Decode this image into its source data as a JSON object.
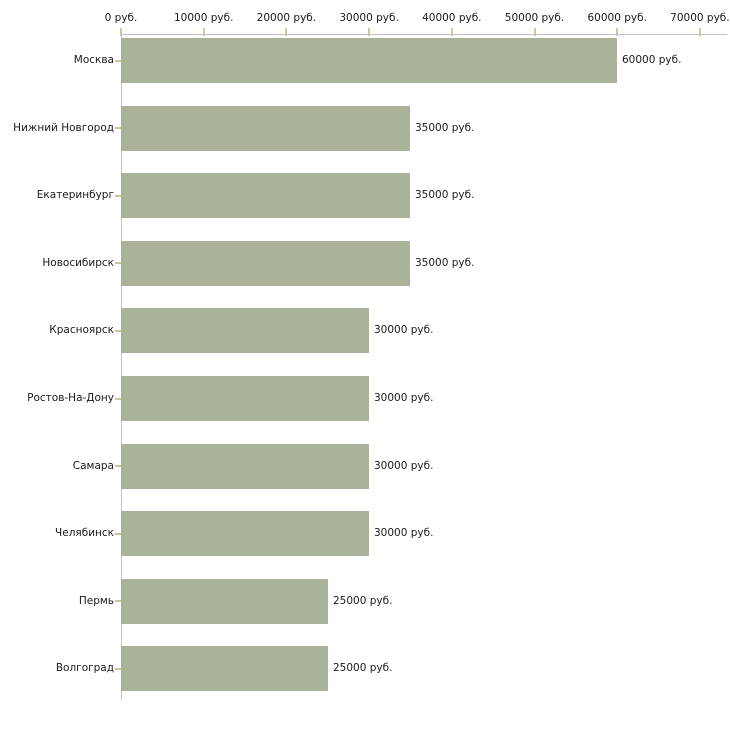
{
  "chart_data": {
    "type": "bar",
    "orientation": "horizontal",
    "title": "",
    "xlabel": "",
    "ylabel": "",
    "grid": false,
    "legend_position": "none",
    "x_axis": {
      "position": "top",
      "min": 0,
      "max": 70000,
      "tick_step": 10000,
      "tick_values": [
        0,
        10000,
        20000,
        30000,
        40000,
        50000,
        60000,
        70000
      ],
      "tick_labels": [
        "0 руб.",
        "10000 руб.",
        "20000 руб.",
        "30000 руб.",
        "40000 руб.",
        "50000 руб.",
        "60000 руб.",
        "70000 руб."
      ]
    },
    "categories": [
      "Москва",
      "Нижний Новгород",
      "Екатеринбург",
      "Новосибирск",
      "Красноярск",
      "Ростов-На-Дону",
      "Самара",
      "Челябинск",
      "Пермь",
      "Волгоград"
    ],
    "values": [
      60000,
      35000,
      35000,
      35000,
      30000,
      30000,
      30000,
      30000,
      25000,
      25000
    ],
    "value_labels": [
      "60000 руб.",
      "35000 руб.",
      "35000 руб.",
      "35000 руб.",
      "30000 руб.",
      "30000 руб.",
      "30000 руб.",
      "30000 руб.",
      "25000 руб.",
      "25000 руб."
    ],
    "colors": {
      "bar": "#abb29a",
      "axis_line": "#c3c3c3",
      "tick_mark": "#c9c6a2",
      "text": "#1a1a1a",
      "background": "#ffffff"
    }
  }
}
